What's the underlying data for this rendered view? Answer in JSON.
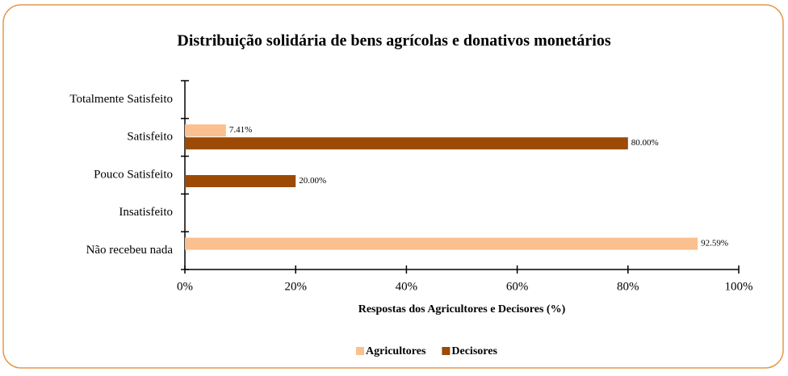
{
  "chart_data": {
    "type": "barh",
    "title": "Distribuição solidária de bens agrícolas e donativos monetários",
    "x_label": "Respostas dos Agricultores e Decisores (%)",
    "categories": [
      "Totalmente Satisfeito",
      "Satisfeito",
      "Pouco Satisfeito",
      "Insatisfeito",
      "Não recebeu nada"
    ],
    "series": [
      {
        "name": "Agricultores",
        "color": "#fac08f",
        "values": [
          null,
          7.41,
          null,
          null,
          92.59
        ],
        "value_labels": [
          null,
          "7.41%",
          null,
          null,
          "92.59%"
        ]
      },
      {
        "name": "Decisores",
        "color": "#9c4a06",
        "values": [
          null,
          80,
          20,
          null,
          null
        ],
        "value_labels": [
          null,
          "80.00%",
          "20.00%",
          null,
          null
        ]
      }
    ],
    "xlim": [
      0,
      100
    ],
    "xticks": [
      {
        "value": 0,
        "label": "0%"
      },
      {
        "value": 20,
        "label": "20%"
      },
      {
        "value": 40,
        "label": "40%"
      },
      {
        "value": 60,
        "label": "60%"
      },
      {
        "value": 80,
        "label": "80%"
      },
      {
        "value": 100,
        "label": "100%"
      }
    ],
    "legend": "bottom"
  }
}
